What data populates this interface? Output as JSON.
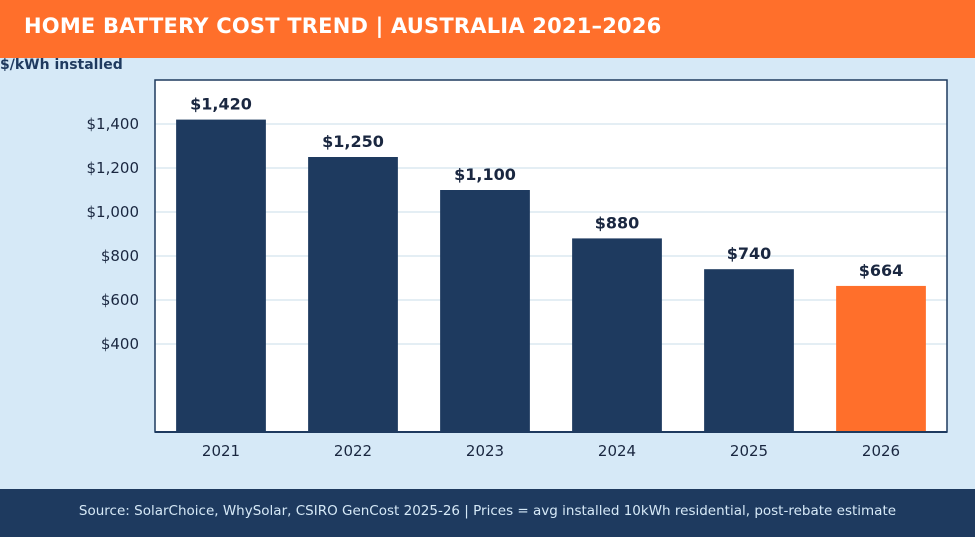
{
  "header": {
    "title": "HOME BATTERY COST TREND  |  AUSTRALIA 2021–2026"
  },
  "footer": {
    "source": "Source: SolarChoice, WhySolar, CSIRO GenCost 2025-26  |  Prices = avg installed 10kWh residential, post-rebate estimate"
  },
  "chart_data": {
    "type": "bar",
    "title": "",
    "xlabel": "",
    "ylabel": "$/kWh installed",
    "categories": [
      "2021",
      "2022",
      "2023",
      "2024",
      "2025",
      "2026"
    ],
    "values": [
      1420,
      1250,
      1100,
      880,
      740,
      664
    ],
    "data_labels": [
      "$1,420",
      "$1,250",
      "$1,100",
      "$880",
      "$740",
      "$664"
    ],
    "y_ticks": [
      400,
      600,
      800,
      1000,
      1200,
      1400
    ],
    "y_tick_labels": [
      "$400",
      "$600",
      "$800",
      "$1,000",
      "$1,200",
      "$1,400"
    ],
    "ylim": [
      0,
      1600
    ],
    "grid": true,
    "colors": {
      "bar": "#1e3a5f",
      "highlight_bar": "#ff6f2b",
      "grid": "#c9dcea",
      "plot_bg": "#ffffff",
      "axis": "#1e3a5f",
      "label": "#1a2740"
    },
    "highlight_index": 5
  }
}
